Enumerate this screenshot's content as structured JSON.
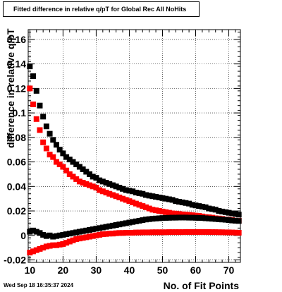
{
  "title": "Fitted difference in relative q/pT for Global Rec All NoHits",
  "date_stamp": "Wed Sep 18 16:35:37 2024",
  "chart_data": {
    "type": "scatter",
    "title": "Fitted difference in relative q/pT for Global Rec All NoHits",
    "xlabel": "No. of Fit Points",
    "ylabel": "difference in relative q/pT",
    "xlim": [
      9.5,
      73.5
    ],
    "ylim": [
      -0.022,
      0.168
    ],
    "grid": true,
    "x_ticks": [
      10,
      20,
      30,
      40,
      50,
      60,
      70
    ],
    "x_tick_labels": [
      "10",
      "20",
      "30",
      "40",
      "50",
      "60",
      "70"
    ],
    "y_ticks": [
      -0.02,
      0,
      0.02,
      0.04,
      0.06,
      0.08,
      0.1,
      0.12,
      0.14,
      0.16
    ],
    "y_tick_labels": [
      "-0.02",
      "0",
      "0.02",
      "0.04",
      "0.06",
      "0.08",
      "0.1",
      "0.12",
      "0.14",
      "0.16"
    ],
    "series": [
      {
        "color": "#000000",
        "x": [
          10,
          11,
          12,
          13,
          14,
          15,
          16,
          17,
          18,
          19,
          20,
          21,
          22,
          23,
          24,
          25,
          26,
          27,
          28,
          29,
          30,
          31,
          32,
          33,
          34,
          35,
          36,
          37,
          38,
          39,
          40,
          41,
          42,
          43,
          44,
          45,
          46,
          47,
          48,
          49,
          50,
          51,
          52,
          53,
          54,
          55,
          56,
          57,
          58,
          59,
          60,
          61,
          62,
          63,
          64,
          65,
          66,
          67,
          68,
          69,
          70,
          71,
          72,
          73
        ],
        "values": [
          0.138,
          0.13,
          0.118,
          0.106,
          0.097,
          0.089,
          0.083,
          0.078,
          0.074,
          0.07,
          0.067,
          0.064,
          0.062,
          0.06,
          0.058,
          0.056,
          0.054,
          0.052,
          0.05,
          0.048,
          0.047,
          0.045,
          0.044,
          0.043,
          0.042,
          0.041,
          0.04,
          0.039,
          0.038,
          0.037,
          0.0365,
          0.036,
          0.035,
          0.0345,
          0.034,
          0.033,
          0.0325,
          0.032,
          0.0315,
          0.031,
          0.0305,
          0.03,
          0.0295,
          0.029,
          0.028,
          0.0275,
          0.027,
          0.0265,
          0.026,
          0.025,
          0.0245,
          0.024,
          0.0235,
          0.023,
          0.022,
          0.0215,
          0.021,
          0.02,
          0.0195,
          0.019,
          0.0185,
          0.018,
          0.0175,
          0.017
        ]
      },
      {
        "color": "#ff0000",
        "x": [
          10,
          11,
          12,
          13,
          14,
          15,
          16,
          17,
          18,
          19,
          20,
          21,
          22,
          23,
          24,
          25,
          26,
          27,
          28,
          29,
          30,
          31,
          32,
          33,
          34,
          35,
          36,
          37,
          38,
          39,
          40,
          41,
          42,
          43,
          44,
          45,
          46,
          47,
          48,
          49,
          50,
          51,
          52,
          53,
          54,
          55,
          56,
          57,
          58,
          59,
          60,
          61,
          62,
          63,
          64,
          65,
          66,
          67,
          68,
          69,
          70,
          71,
          72,
          73
        ],
        "values": [
          0.12,
          0.107,
          0.095,
          0.086,
          0.076,
          0.071,
          0.066,
          0.064,
          0.06,
          0.058,
          0.056,
          0.053,
          0.05,
          0.048,
          0.046,
          0.044,
          0.043,
          0.042,
          0.041,
          0.04,
          0.039,
          0.037,
          0.036,
          0.035,
          0.034,
          0.033,
          0.032,
          0.031,
          0.03,
          0.029,
          0.028,
          0.027,
          0.026,
          0.025,
          0.024,
          0.023,
          0.022,
          0.021,
          0.0205,
          0.02,
          0.0195,
          0.019,
          0.0185,
          0.018,
          0.0178,
          0.0175,
          0.0172,
          0.017,
          0.0168,
          0.0165,
          0.0162,
          0.016,
          0.0155,
          0.015,
          0.0148,
          0.0145,
          0.014,
          0.0138,
          0.0135,
          0.013,
          0.0128,
          0.0125,
          0.012,
          0.012
        ]
      },
      {
        "color": "#000000",
        "x": [
          10,
          11,
          12,
          13,
          14,
          15,
          16,
          17,
          18,
          19,
          20,
          21,
          22,
          23,
          24,
          25,
          26,
          27,
          28,
          29,
          30,
          31,
          32,
          33,
          34,
          35,
          36,
          37,
          38,
          39,
          40,
          41,
          42,
          43,
          44,
          45,
          46,
          47,
          48,
          49,
          50,
          51,
          52,
          53,
          54,
          55,
          56,
          57,
          58,
          59,
          60,
          61,
          62,
          63,
          64,
          65,
          66,
          67,
          68,
          69,
          70,
          71,
          72,
          73
        ],
        "values": [
          0.003,
          0.004,
          0.003,
          0.002,
          0.0005,
          -0.0005,
          0.0,
          -0.001,
          -0.0005,
          0.0,
          0.0005,
          0.001,
          0.0015,
          0.002,
          0.0025,
          0.003,
          0.0035,
          0.004,
          0.0045,
          0.005,
          0.0055,
          0.006,
          0.0065,
          0.007,
          0.0075,
          0.008,
          0.0085,
          0.009,
          0.0095,
          0.01,
          0.0105,
          0.011,
          0.0115,
          0.012,
          0.0125,
          0.013,
          0.0133,
          0.0136,
          0.0138,
          0.014,
          0.0142,
          0.0143,
          0.0144,
          0.0145,
          0.0145,
          0.0146,
          0.0146,
          0.0146,
          0.0145,
          0.0145,
          0.0144,
          0.0143,
          0.0142,
          0.014,
          0.0138,
          0.0136,
          0.0134,
          0.0132,
          0.013,
          0.0128,
          0.0125,
          0.0122,
          0.012,
          0.0118
        ]
      },
      {
        "color": "#ff0000",
        "x": [
          10,
          11,
          12,
          13,
          14,
          15,
          16,
          17,
          18,
          19,
          20,
          21,
          22,
          23,
          24,
          25,
          26,
          27,
          28,
          29,
          30,
          31,
          32,
          33,
          34,
          35,
          36,
          37,
          38,
          39,
          40,
          41,
          42,
          43,
          44,
          45,
          46,
          47,
          48,
          49,
          50,
          51,
          52,
          53,
          54,
          55,
          56,
          57,
          58,
          59,
          60,
          61,
          62,
          63,
          64,
          65,
          66,
          67,
          68,
          69,
          70,
          71,
          72,
          73
        ],
        "values": [
          -0.014,
          -0.013,
          -0.012,
          -0.011,
          -0.01,
          -0.009,
          -0.0085,
          -0.008,
          -0.008,
          -0.0075,
          -0.007,
          -0.006,
          -0.005,
          -0.004,
          -0.003,
          -0.0025,
          -0.002,
          -0.0015,
          -0.001,
          -0.0005,
          0.0,
          0.0005,
          0.001,
          0.0012,
          0.0015,
          0.0015,
          0.0018,
          0.002,
          0.002,
          0.0022,
          0.0022,
          0.0022,
          0.0024,
          0.0024,
          0.0025,
          0.0025,
          0.0025,
          0.0026,
          0.0026,
          0.0026,
          0.0026,
          0.0026,
          0.0027,
          0.0027,
          0.0027,
          0.0027,
          0.0027,
          0.0028,
          0.0028,
          0.0028,
          0.0028,
          0.0028,
          0.0028,
          0.0028,
          0.0028,
          0.0027,
          0.0027,
          0.0026,
          0.0026,
          0.0025,
          0.0025,
          0.0024,
          0.0023,
          0.0022
        ]
      }
    ]
  }
}
